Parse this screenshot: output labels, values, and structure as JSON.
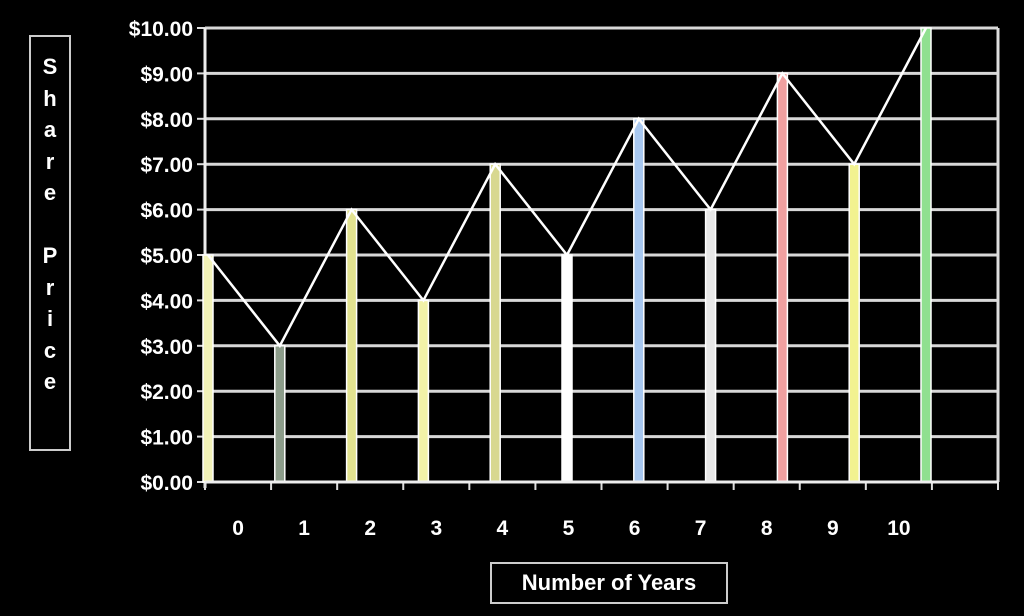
{
  "chart_data": {
    "type": "bar",
    "title": "",
    "xlabel": "Number of Years",
    "ylabel": "Share Price",
    "categories": [
      "0",
      "1",
      "2",
      "3",
      "4",
      "5",
      "6",
      "7",
      "8",
      "9",
      "10"
    ],
    "values": [
      5,
      3,
      6,
      4,
      7,
      5,
      8,
      6,
      9,
      7,
      10
    ],
    "bar_colors": [
      "#f2f2b8",
      "#8c9c8a",
      "#e2e290",
      "#f2f2a8",
      "#d8d890",
      "#ffffff",
      "#a8c8f0",
      "#e8e8e8",
      "#f0a0a0",
      "#f2f290",
      "#90e090"
    ],
    "line_overlay": true,
    "line_color": "#ffffff",
    "ylim": [
      0,
      10
    ],
    "yticks": [
      "$0.00",
      "$1.00",
      "$2.00",
      "$3.00",
      "$4.00",
      "$5.00",
      "$6.00",
      "$7.00",
      "$8.00",
      "$9.00",
      "$10.00"
    ],
    "grid": true,
    "background": "#000000"
  }
}
